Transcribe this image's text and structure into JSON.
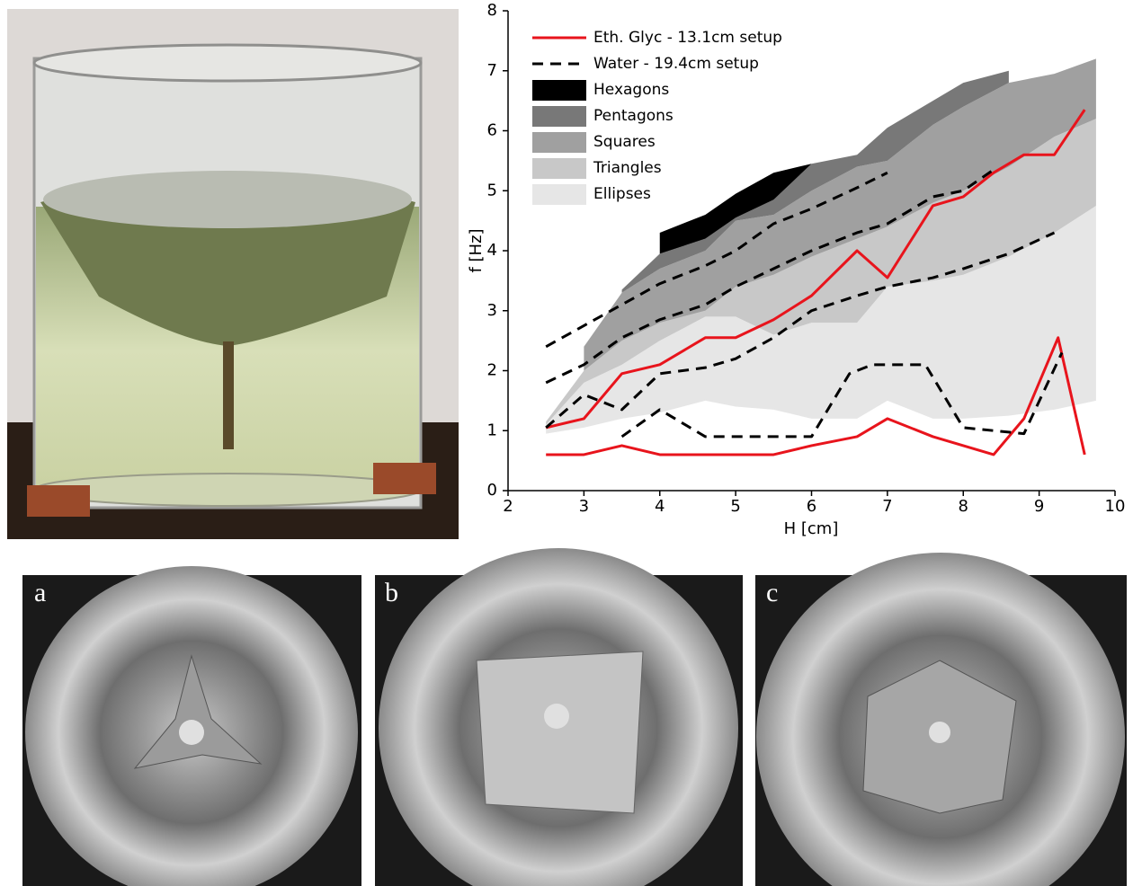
{
  "chart_data": {
    "type": "line",
    "xlabel": "H [cm]",
    "ylabel": "f [Hz]",
    "xlim": [
      2,
      10
    ],
    "ylim": [
      0,
      8
    ],
    "xticks": [
      2,
      3,
      4,
      5,
      6,
      7,
      8,
      9,
      10
    ],
    "yticks": [
      0,
      1,
      2,
      3,
      4,
      5,
      6,
      7,
      8
    ],
    "grid": false,
    "legend": "upper left",
    "series": [
      {
        "name": "Eth. Glyc - 13.1cm setup",
        "color": "#e8141c",
        "dash": false,
        "x": [
          2.5,
          3,
          3.5,
          4,
          4.6,
          5,
          5.5,
          6,
          6.6,
          7,
          7.6,
          8,
          8.4,
          8.8,
          9.2,
          9.6,
          null,
          2.5,
          3,
          3.5,
          4,
          5,
          5.5,
          6,
          6.6,
          7,
          7.6,
          8.4,
          8.8,
          9.25,
          9.6
        ],
        "values": [
          1.05,
          1.2,
          1.95,
          2.1,
          2.55,
          2.55,
          2.85,
          3.25,
          4.0,
          3.55,
          4.75,
          4.9,
          5.3,
          5.6,
          5.6,
          6.35,
          null,
          0.6,
          0.6,
          0.75,
          0.6,
          0.6,
          0.6,
          0.75,
          0.9,
          1.2,
          0.9,
          0.6,
          1.2,
          2.55,
          0.6
        ]
      },
      {
        "name": "Water - 19.4cm setup",
        "color": "#000000",
        "dash": true,
        "x": [
          2.5,
          3,
          3.5,
          4,
          4.6,
          5,
          5.5,
          6,
          6.6,
          7,
          null,
          2.5,
          3,
          3.5,
          4,
          4.6,
          5,
          5.5,
          6,
          6.6,
          7,
          7.6,
          8,
          8.4,
          null,
          2.5,
          3,
          3.5,
          4,
          4.6,
          5,
          5.5,
          6,
          6.6,
          7,
          7.6,
          8,
          8.6,
          9.2,
          null,
          3.5,
          4,
          4.6,
          5,
          5.5,
          6,
          6.5,
          6.8,
          7.5,
          8,
          8.8,
          9.3
        ],
        "values": [
          2.4,
          2.75,
          3.1,
          3.45,
          3.75,
          4.0,
          4.45,
          4.7,
          5.05,
          5.3,
          null,
          1.8,
          2.1,
          2.55,
          2.85,
          3.1,
          3.4,
          3.7,
          4.0,
          4.3,
          4.45,
          4.9,
          5.0,
          5.35,
          null,
          1.05,
          1.6,
          1.35,
          1.95,
          2.05,
          2.2,
          2.55,
          3.0,
          3.25,
          3.4,
          3.55,
          3.7,
          3.95,
          4.3,
          null,
          0.9,
          1.35,
          0.9,
          0.9,
          0.9,
          0.9,
          1.95,
          2.1,
          2.1,
          1.05,
          0.95,
          2.3
        ]
      }
    ],
    "areas": [
      {
        "name": "Hexagons",
        "color": "#000000",
        "x": [
          4,
          4.6,
          5,
          5.5,
          6
        ],
        "lower": [
          3.95,
          4.2,
          4.55,
          4.85,
          5.45
        ],
        "upper": [
          4.3,
          4.6,
          4.95,
          5.3,
          5.45
        ]
      },
      {
        "name": "Pentagons",
        "color": "#787878",
        "x": [
          3.5,
          4,
          4.6,
          5,
          5.5,
          6,
          6.6,
          7,
          7.6,
          8,
          8.6
        ],
        "lower": [
          3.3,
          3.7,
          4.0,
          4.5,
          4.6,
          5.0,
          5.4,
          5.5,
          6.1,
          6.4,
          6.8
        ],
        "upper": [
          3.35,
          3.95,
          4.2,
          4.55,
          4.85,
          5.45,
          5.6,
          6.05,
          6.5,
          6.8,
          7.0
        ]
      },
      {
        "name": "Squares",
        "color": "#a0a0a0",
        "x": [
          3,
          3.5,
          4,
          4.6,
          5,
          5.5,
          6,
          6.6,
          7,
          7.6,
          8,
          8.6,
          9.2,
          9.75
        ],
        "lower": [
          2.0,
          2.5,
          2.8,
          3.0,
          3.4,
          3.6,
          3.9,
          4.2,
          4.4,
          4.8,
          5.0,
          5.4,
          5.9,
          6.2
        ],
        "upper": [
          2.4,
          3.3,
          3.7,
          4.0,
          4.5,
          4.6,
          5.0,
          5.4,
          5.5,
          6.1,
          6.4,
          6.8,
          6.95,
          7.2
        ]
      },
      {
        "name": "Triangles",
        "color": "#c8c8c8",
        "x": [
          2.5,
          3,
          3.5,
          4,
          4.6,
          5,
          5.5,
          6,
          6.6,
          7,
          7.6,
          8,
          8.6,
          9.2,
          9.75
        ],
        "lower": [
          1.1,
          1.8,
          2.1,
          2.5,
          2.9,
          2.9,
          2.6,
          2.8,
          2.8,
          3.4,
          3.5,
          3.6,
          3.9,
          4.3,
          4.75
        ],
        "upper": [
          1.15,
          2.0,
          2.5,
          2.8,
          3.0,
          3.4,
          3.6,
          3.9,
          4.2,
          4.4,
          4.8,
          5.0,
          5.4,
          5.9,
          6.2
        ]
      },
      {
        "name": "Ellipses",
        "color": "#e6e6e6",
        "x": [
          2.5,
          3,
          3.5,
          4,
          4.6,
          5,
          5.5,
          6,
          6.6,
          7,
          7.6,
          8,
          8.6,
          9.2,
          9.75
        ],
        "lower": [
          0.95,
          1.05,
          1.2,
          1.3,
          1.5,
          1.4,
          1.35,
          1.2,
          1.2,
          1.5,
          1.2,
          1.2,
          1.25,
          1.35,
          1.5
        ],
        "upper": [
          1.1,
          1.8,
          2.1,
          2.5,
          2.9,
          2.9,
          2.6,
          2.8,
          2.8,
          3.4,
          3.5,
          3.6,
          3.9,
          4.3,
          4.75
        ]
      }
    ]
  },
  "panels": [
    "a",
    "b",
    "c"
  ]
}
